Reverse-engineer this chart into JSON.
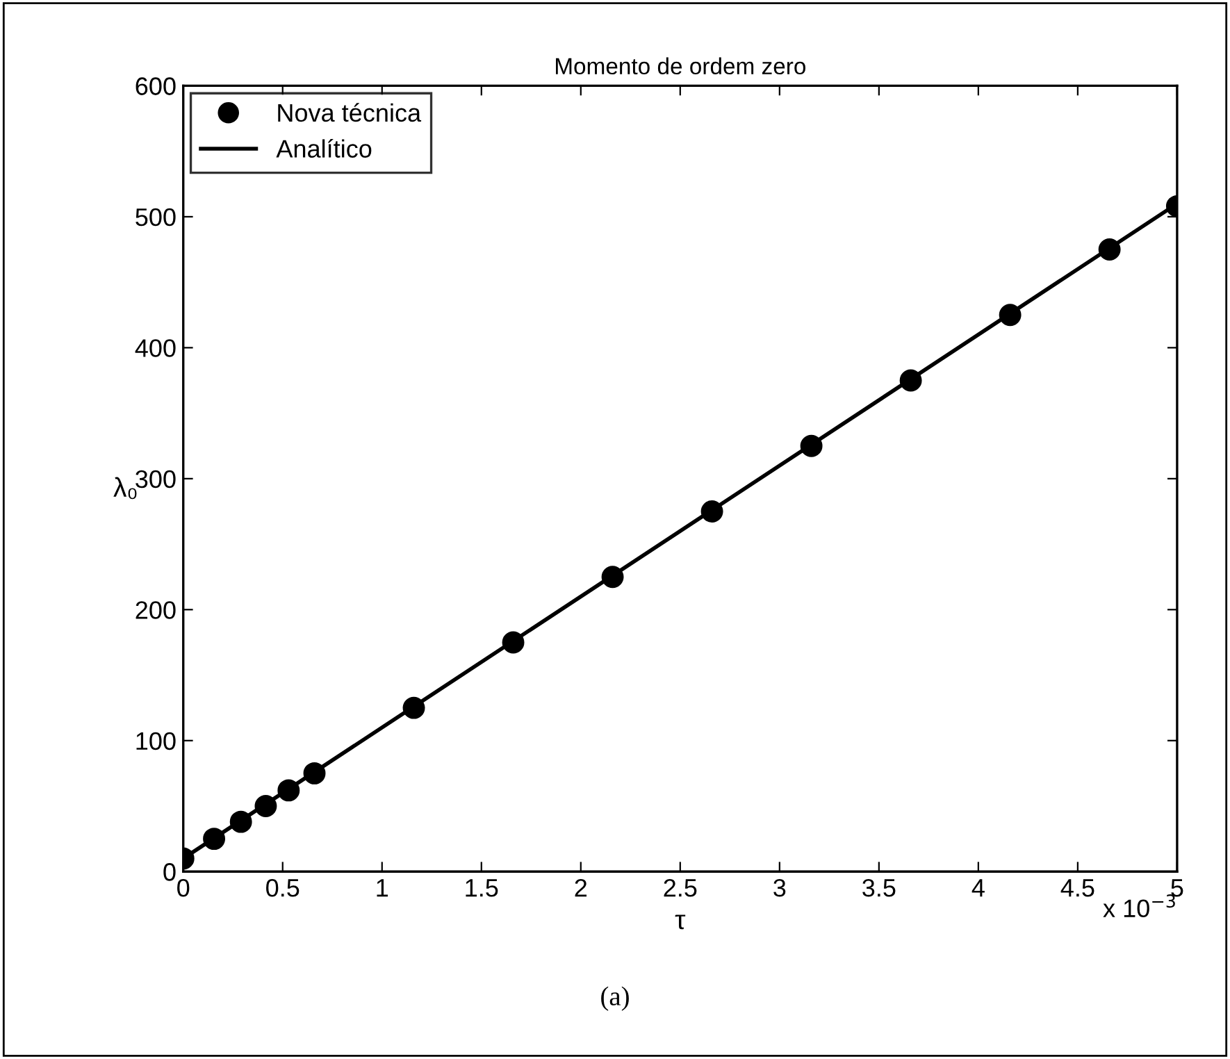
{
  "chart_data": {
    "type": "scatter",
    "title": "Momento de ordem zero",
    "xlabel": "τ",
    "ylabel": "λ₀",
    "annotations": [
      "x 10$^{−3}$",
      "(a)"
    ],
    "series": [
      {
        "name": "Nova técnica",
        "color": "#000000",
        "marker": "circle",
        "x": [
          0,
          0.155,
          0.29,
          0.415,
          0.53,
          0.66,
          1.16,
          1.66,
          2.16,
          2.66,
          3.16,
          3.66,
          4.16,
          4.66,
          5.0
        ],
        "values": [
          10,
          25,
          38,
          50,
          62,
          75,
          125,
          175,
          225,
          275,
          325,
          375,
          425,
          475,
          508
        ]
      },
      {
        "name": "Analítico",
        "type": "line",
        "color": "#000000",
        "marker": "none",
        "line_style": "solid",
        "x": [
          0,
          5
        ],
        "values": [
          10,
          510
        ]
      }
    ],
    "xlim": [
      0,
      5
    ],
    "xticks": [
      0,
      0.5,
      1,
      1.5,
      2,
      2.5,
      3,
      3.5,
      4,
      4.5,
      5
    ],
    "ylim": [
      0,
      600
    ],
    "yticks": [
      0,
      100,
      200,
      300,
      400,
      500,
      600
    ],
    "grid": false,
    "legend": "top left"
  }
}
